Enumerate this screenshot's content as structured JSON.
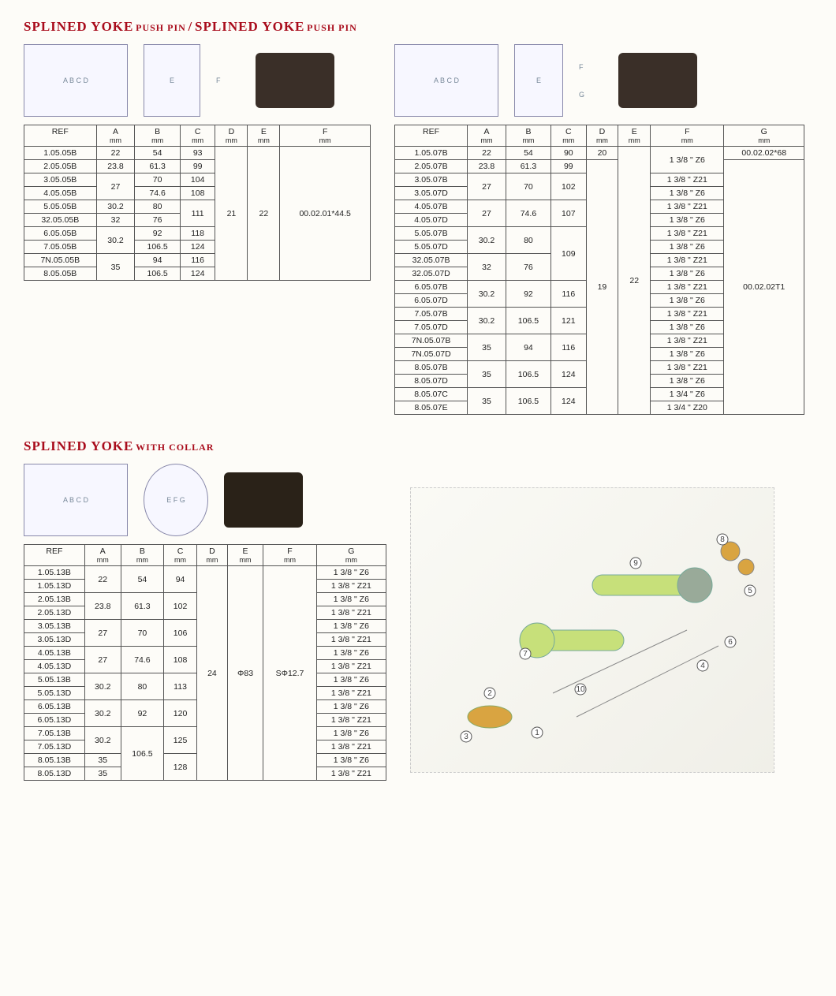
{
  "section1": {
    "title_big_a": "SPLINED YOKE",
    "title_small_a": "PUSH PIN",
    "title_sep": "/",
    "title_big_b": "SPLINED YOKE",
    "title_small_b": "PUSH PIN"
  },
  "table1": {
    "headers": [
      "REF",
      "A",
      "B",
      "C",
      "D",
      "E",
      "F"
    ],
    "units": [
      "",
      "mm",
      "mm",
      "mm",
      "mm",
      "mm",
      "mm"
    ],
    "merged_D": "21",
    "merged_E": "22",
    "merged_F": "00.02.01*44.5",
    "rows": [
      {
        "ref": "1.05.05B",
        "a": "22",
        "b": "54",
        "c": "93"
      },
      {
        "ref": "2.05.05B",
        "a": "23.8",
        "b": "61.3",
        "c": "99"
      },
      {
        "ref": "3.05.05B",
        "a": "27",
        "b": "70",
        "c": "104",
        "a_span": 2
      },
      {
        "ref": "4.05.05B",
        "b": "74.6",
        "c": "108"
      },
      {
        "ref": "5.05.05B",
        "a": "30.2",
        "b": "80",
        "c": "111",
        "c_span": 2
      },
      {
        "ref": "32.05.05B",
        "a": "32",
        "b": "76"
      },
      {
        "ref": "6.05.05B",
        "a": "30.2",
        "b": "92",
        "c": "118",
        "a_span": 2
      },
      {
        "ref": "7.05.05B",
        "b": "106.5",
        "c": "124"
      },
      {
        "ref": "7N.05.05B",
        "a": "35",
        "b": "94",
        "c": "116",
        "a_span": 2
      },
      {
        "ref": "8.05.05B",
        "b": "106.5",
        "c": "124"
      }
    ]
  },
  "table2": {
    "headers": [
      "REF",
      "A",
      "B",
      "C",
      "D",
      "E",
      "F",
      "G"
    ],
    "units": [
      "",
      "mm",
      "mm",
      "mm",
      "mm",
      "mm",
      "mm",
      "mm"
    ],
    "merged_E": "22",
    "g_top": "00.02.02*68",
    "g_rest": "00.02.02T1",
    "rows": [
      {
        "ref": "1.05.07B",
        "a": "22",
        "b": "54",
        "c": "90",
        "d": "20",
        "f": "1 3/8 \" Z6",
        "f_span": 2
      },
      {
        "ref": "2.05.07B",
        "a": "23.8",
        "b": "61.3",
        "c": "99",
        "d": "19",
        "d_span": 21
      },
      {
        "ref": "3.05.07B",
        "a": "27",
        "a_span": 2,
        "b": "70",
        "b_span": 2,
        "c": "102",
        "c_span": 2,
        "f": "1 3/8 \" Z21"
      },
      {
        "ref": "3.05.07D",
        "f": "1 3/8 \" Z6"
      },
      {
        "ref": "4.05.07B",
        "a": "27",
        "a_span": 2,
        "b": "74.6",
        "b_span": 2,
        "c": "107",
        "c_span": 2,
        "f": "1 3/8 \" Z21"
      },
      {
        "ref": "4.05.07D",
        "f": "1 3/8 \" Z6"
      },
      {
        "ref": "5.05.07B",
        "a": "30.2",
        "a_span": 2,
        "b": "80",
        "b_span": 2,
        "c": "109",
        "c_span": 4,
        "f": "1 3/8 \" Z21"
      },
      {
        "ref": "5.05.07D",
        "f": "1 3/8 \" Z6"
      },
      {
        "ref": "32.05.07B",
        "a": "32",
        "a_span": 2,
        "b": "76",
        "b_span": 2,
        "f": "1 3/8 \" Z21"
      },
      {
        "ref": "32.05.07D",
        "f": "1 3/8 \" Z6"
      },
      {
        "ref": "6.05.07B",
        "a": "30.2",
        "a_span": 2,
        "b": "92",
        "b_span": 2,
        "c": "116",
        "c_span": 2,
        "f": "1 3/8 \" Z21"
      },
      {
        "ref": "6.05.07D",
        "f": "1 3/8 \" Z6"
      },
      {
        "ref": "7.05.07B",
        "a": "30.2",
        "a_span": 2,
        "b": "106.5",
        "b_span": 2,
        "c": "121",
        "c_span": 2,
        "f": "1 3/8 \" Z21"
      },
      {
        "ref": "7.05.07D",
        "f": "1 3/8 \" Z6"
      },
      {
        "ref": "7N.05.07B",
        "a": "35",
        "a_span": 2,
        "b": "94",
        "b_span": 2,
        "c": "116",
        "c_span": 2,
        "f": "1 3/8 \" Z21"
      },
      {
        "ref": "7N.05.07D",
        "f": "1 3/8 \" Z6"
      },
      {
        "ref": "8.05.07B",
        "a": "35",
        "a_span": 2,
        "b": "106.5",
        "b_span": 2,
        "c": "124",
        "c_span": 2,
        "f": "1 3/8 \" Z21"
      },
      {
        "ref": "8.05.07D",
        "f": "1 3/8 \" Z6"
      },
      {
        "ref": "8.05.07C",
        "a": "35",
        "a_span": 2,
        "b": "106.5",
        "b_span": 2,
        "c": "124",
        "c_span": 2,
        "f": "1 3/4 \" Z6"
      },
      {
        "ref": "8.05.07E",
        "f": "1 3/4 \" Z20"
      }
    ]
  },
  "section2": {
    "title_big": "SPLINED YOKE",
    "title_small": "WITH COLLAR"
  },
  "table3": {
    "headers": [
      "REF",
      "A",
      "B",
      "C",
      "D",
      "E",
      "F",
      "G"
    ],
    "units": [
      "",
      "mm",
      "mm",
      "mm",
      "mm",
      "mm",
      "mm",
      "mm"
    ],
    "merged_D": "24",
    "merged_E": "Φ83",
    "merged_F": "SΦ12.7",
    "rows": [
      {
        "ref": "1.05.13B",
        "a": "22",
        "a_span": 2,
        "b": "54",
        "b_span": 2,
        "c": "94",
        "c_span": 2,
        "g": "1 3/8 \" Z6"
      },
      {
        "ref": "1.05.13D",
        "g": "1 3/8 \" Z21"
      },
      {
        "ref": "2.05.13B",
        "a": "23.8",
        "a_span": 2,
        "b": "61.3",
        "b_span": 2,
        "c": "102",
        "c_span": 2,
        "g": "1 3/8 \" Z6"
      },
      {
        "ref": "2.05.13D",
        "g": "1 3/8 \" Z21"
      },
      {
        "ref": "3.05.13B",
        "a": "27",
        "a_span": 2,
        "b": "70",
        "b_span": 2,
        "c": "106",
        "c_span": 2,
        "g": "1 3/8 \" Z6"
      },
      {
        "ref": "3.05.13D",
        "g": "1 3/8 \" Z21"
      },
      {
        "ref": "4.05.13B",
        "a": "27",
        "a_span": 2,
        "b": "74.6",
        "b_span": 2,
        "c": "108",
        "c_span": 2,
        "g": "1 3/8 \" Z6"
      },
      {
        "ref": "4.05.13D",
        "g": "1 3/8 \" Z21"
      },
      {
        "ref": "5.05.13B",
        "a": "30.2",
        "a_span": 2,
        "b": "80",
        "b_span": 2,
        "c": "113",
        "c_span": 2,
        "g": "1 3/8 \" Z6"
      },
      {
        "ref": "5.05.13D",
        "g": "1 3/8 \" Z21"
      },
      {
        "ref": "6.05.13B",
        "a": "30.2",
        "a_span": 2,
        "b": "92",
        "b_span": 2,
        "c": "120",
        "c_span": 2,
        "g": "1 3/8 \" Z6"
      },
      {
        "ref": "6.05.13D",
        "g": "1 3/8 \" Z21"
      },
      {
        "ref": "7.05.13B",
        "a": "30.2",
        "a_span": 2,
        "b": "106.5",
        "b_span": 4,
        "c": "125",
        "c_span": 2,
        "g": "1 3/8 \" Z6"
      },
      {
        "ref": "7.05.13D",
        "g": "1 3/8 \" Z21"
      },
      {
        "ref": "8.05.13B",
        "a": "35",
        "c": "128",
        "c_span": 2,
        "g": "1 3/8 \" Z6"
      },
      {
        "ref": "8.05.13D",
        "a": "35",
        "g": "1 3/8 \" Z21"
      }
    ]
  },
  "exploded_labels": [
    "1",
    "2",
    "3",
    "4",
    "5",
    "6",
    "7",
    "8",
    "9",
    "10"
  ],
  "diagram_dim_labels": [
    "A",
    "B",
    "C",
    "D",
    "E",
    "F",
    "G"
  ],
  "colors": {
    "title": "#a90c1c",
    "border": "#555555",
    "page_bg": "#fdfcf8",
    "diagram_line": "#4a5a9a"
  }
}
